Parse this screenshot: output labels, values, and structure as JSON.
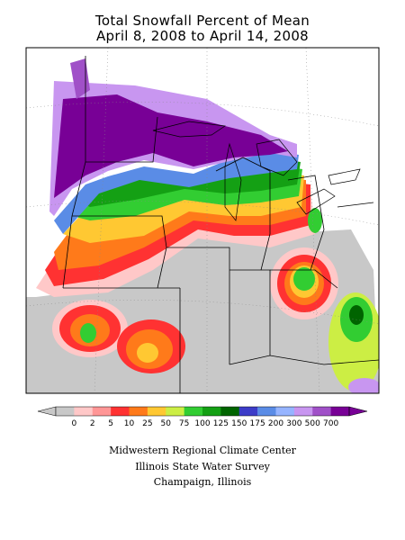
{
  "title": {
    "line1": "Total Snowfall Percent of Mean",
    "line2": "April 8, 2008 to April 14, 2008"
  },
  "legend": {
    "ticks": [
      "0",
      "2",
      "5",
      "10",
      "25",
      "50",
      "75",
      "100",
      "125",
      "150",
      "175",
      "200",
      "300",
      "500",
      "700"
    ],
    "colors": [
      "#c8c8c8",
      "#ffc8c8",
      "#ff9696",
      "#ff3232",
      "#ff7a1a",
      "#ffc832",
      "#ccee44",
      "#32cd32",
      "#14a014",
      "#006400",
      "#3c3cc8",
      "#5a8ce6",
      "#96b4ff",
      "#c896f0",
      "#a050c8",
      "#780096"
    ]
  },
  "credits": {
    "line1": "Midwestern Regional Climate Center",
    "line2": "Illinois State Water Survey",
    "line3": "Champaign, Illinois"
  }
}
